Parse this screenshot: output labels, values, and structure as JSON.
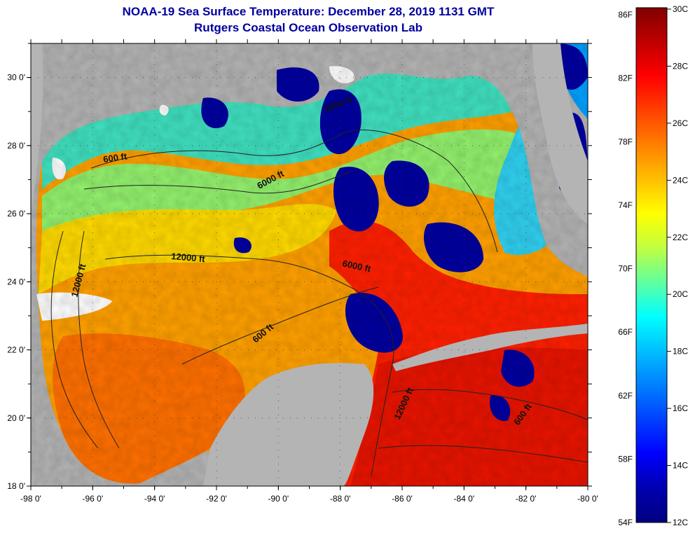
{
  "title": "NOAA-19 Sea Surface Temperature:  December 28, 2019 1131 GMT",
  "subtitle": "Rutgers Coastal Ocean Observation Lab",
  "colors": {
    "title": "#0000a0",
    "land": "#b4b4b4",
    "no_data": "#ffffff",
    "frame": "#000000"
  },
  "map": {
    "lat_labels": [
      "18 0'",
      "20 0'",
      "22 0'",
      "24 0'",
      "26 0'",
      "28 0'",
      "30 0'"
    ],
    "lon_labels": [
      "-98 0'",
      "-96 0'",
      "-94 0'",
      "-92 0'",
      "-90 0'",
      "-88 0'",
      "-86 0'",
      "-84 0'",
      "-82 0'",
      "-80 0'"
    ],
    "lat_range": [
      18,
      31
    ],
    "lon_range": [
      -98,
      -80
    ],
    "contour_labels": [
      {
        "text": "600 ft"
      },
      {
        "text": "6000 ft"
      },
      {
        "text": "6000 ft"
      },
      {
        "text": "12000 ft"
      },
      {
        "text": "6000 ft"
      },
      {
        "text": "600 ft"
      },
      {
        "text": "12000 ft"
      },
      {
        "text": "12000 ft"
      },
      {
        "text": "600 ft"
      }
    ]
  },
  "colorbar": {
    "fahrenheit_labels": [
      "86F",
      "82F",
      "78F",
      "74F",
      "70F",
      "66F",
      "62F",
      "58F",
      "54F"
    ],
    "celsius_labels": [
      "30C",
      "28C",
      "26C",
      "24C",
      "22C",
      "20C",
      "18C",
      "16C",
      "14C",
      "12C"
    ],
    "colors_top_to_bottom": [
      "#800000",
      "#c00000",
      "#ff0000",
      "#ff4000",
      "#ff8000",
      "#ffbf00",
      "#ffff00",
      "#c0ff40",
      "#60ff9f",
      "#00ffff",
      "#00bfff",
      "#0080ff",
      "#0040ff",
      "#0000ff",
      "#0000b0",
      "#000080"
    ]
  }
}
